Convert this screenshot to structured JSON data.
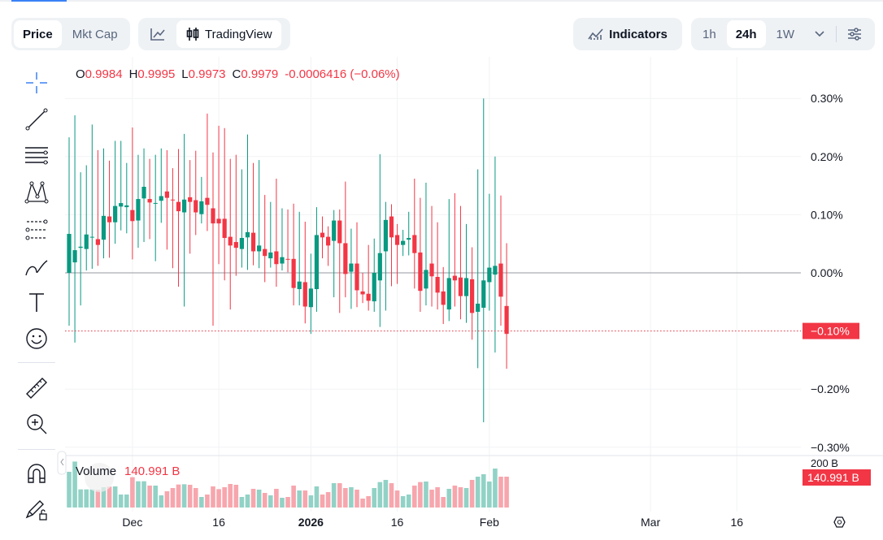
{
  "toolbar": {
    "price": "Price",
    "mkt_cap": "Mkt Cap",
    "tradingview": "TradingView",
    "indicators": "Indicators",
    "intervals": [
      "1h",
      "24h",
      "1W"
    ],
    "active_interval": "24h"
  },
  "legend": {
    "o_label": "O",
    "o": "0.9984",
    "h_label": "H",
    "h": "0.9995",
    "l_label": "L",
    "l": "0.9973",
    "c_label": "C",
    "c": "0.9979",
    "change": "-0.0006416 (−0.06%)"
  },
  "volume": {
    "label": "Volume",
    "value": "140.991 B",
    "axis_label": "200 B",
    "value_badge": "140.991 B"
  },
  "price_axis": {
    "ticks": [
      "0.30%",
      "0.20%",
      "0.10%",
      "0.00%",
      "−0.10%",
      "−0.20%",
      "−0.30%"
    ],
    "current_badge": "−0.10%"
  },
  "time_axis": {
    "ticks": [
      "Dec",
      "16",
      "2026",
      "16",
      "Feb",
      "Mar",
      "16"
    ]
  },
  "colors": {
    "up": "#089981",
    "down": "#f23645",
    "up_vol": "#92d2c6",
    "down_vol": "#f7a6ad",
    "accent": "#3b82f6"
  },
  "left_tools": [
    "crosshair-icon",
    "trend-line-icon",
    "horizontal-lines-icon",
    "pattern-icon",
    "projection-icon",
    "brush-icon",
    "text-icon",
    "emoji-icon",
    "ruler-icon",
    "zoom-in-icon",
    "magnet-icon",
    "lock-drawing-icon"
  ],
  "chart_data": {
    "type": "candlestick",
    "ylabel": "",
    "ylim": [
      -0.3,
      0.3
    ],
    "y_unit": "%",
    "grid": true,
    "current_value": -0.1,
    "columns": [
      "date",
      "open",
      "high",
      "low",
      "close",
      "volume_B"
    ],
    "candles": [
      [
        "2025-11-20",
        0.0,
        0.233,
        -0.091,
        0.067,
        163.3
      ],
      [
        "2025-11-21",
        0.018,
        0.271,
        -0.12,
        0.039,
        210.0
      ],
      [
        "2025-11-22",
        0.043,
        0.173,
        -0.056,
        0.045,
        82.9
      ],
      [
        "2025-11-23",
        0.041,
        0.185,
        0.004,
        0.066,
        82.9
      ],
      [
        "2025-11-24",
        0.061,
        0.255,
        0.007,
        0.062,
        82.9
      ],
      [
        "2025-11-25",
        0.058,
        0.211,
        0.012,
        0.048,
        80.4
      ],
      [
        "2025-11-26",
        0.057,
        0.214,
        0.025,
        0.098,
        92.8
      ],
      [
        "2025-11-27",
        0.097,
        0.193,
        0.026,
        0.087,
        95.2
      ],
      [
        "2025-11-28",
        0.087,
        0.227,
        0.05,
        0.115,
        96.5
      ],
      [
        "2025-11-29",
        0.114,
        0.227,
        0.073,
        0.12,
        59.4
      ],
      [
        "2025-11-30",
        0.113,
        0.189,
        0.068,
        0.116,
        59.4
      ],
      [
        "2025-12-01",
        0.108,
        0.25,
        0.023,
        0.089,
        138.5
      ],
      [
        "2025-12-02",
        0.09,
        0.203,
        0.043,
        0.127,
        120.0
      ],
      [
        "2025-12-03",
        0.128,
        0.214,
        0.053,
        0.148,
        120.0
      ],
      [
        "2025-12-04",
        0.127,
        0.196,
        0.058,
        0.121,
        100.2
      ],
      [
        "2025-12-05",
        0.12,
        0.203,
        0.02,
        0.1202,
        100.2
      ],
      [
        "2025-12-06",
        0.124,
        0.214,
        0.086,
        0.132,
        55.7
      ],
      [
        "2025-12-07",
        0.14,
        0.211,
        0.04,
        0.129,
        74.2
      ],
      [
        "2025-12-08",
        0.126,
        0.18,
        0.008,
        0.125,
        89.1
      ],
      [
        "2025-12-09",
        0.122,
        0.213,
        -0.024,
        0.106,
        105.1
      ],
      [
        "2025-12-10",
        0.104,
        0.239,
        -0.058,
        0.126,
        106.4
      ],
      [
        "2025-12-11",
        0.13,
        0.194,
        0.033,
        0.122,
        103.9
      ],
      [
        "2025-12-12",
        0.125,
        0.21,
        0.065,
        0.104,
        89.1
      ],
      [
        "2025-12-13",
        0.101,
        0.165,
        0.085,
        0.123,
        48.2
      ],
      [
        "2025-12-14",
        0.129,
        0.274,
        0.072,
        0.117,
        59.4
      ],
      [
        "2025-12-15",
        0.111,
        0.207,
        -0.091,
        0.085,
        96.5
      ],
      [
        "2025-12-16",
        0.093,
        0.253,
        0.015,
        0.085,
        84.1
      ],
      [
        "2025-12-17",
        0.093,
        0.249,
        -0.013,
        0.06,
        92.8
      ],
      [
        "2025-12-18",
        0.062,
        0.196,
        -0.063,
        0.047,
        107.6
      ],
      [
        "2025-12-19",
        0.053,
        0.203,
        -0.005,
        0.043,
        103.9
      ],
      [
        "2025-12-20",
        0.041,
        0.178,
        0.009,
        0.06,
        48.2
      ],
      [
        "2025-12-21",
        0.061,
        0.238,
        0.005,
        0.07,
        59.4
      ],
      [
        "2025-12-22",
        0.069,
        0.189,
        0.013,
        0.037,
        85.4
      ],
      [
        "2025-12-23",
        0.037,
        0.194,
        0.008,
        0.047,
        81.6
      ],
      [
        "2025-12-24",
        0.041,
        0.134,
        -0.016,
        0.029,
        66.8
      ],
      [
        "2025-12-25",
        0.025,
        0.122,
        0.009,
        0.035,
        55.7
      ],
      [
        "2025-12-26",
        0.037,
        0.162,
        -0.024,
        0.015,
        85.4
      ],
      [
        "2025-12-27",
        0.016,
        0.111,
        0.004,
        0.027,
        44.5
      ],
      [
        "2025-12-28",
        0.024,
        0.109,
        0.001,
        0.023,
        48.2
      ],
      [
        "2025-12-29",
        0.024,
        0.119,
        -0.056,
        -0.026,
        100.2
      ],
      [
        "2025-12-30",
        -0.028,
        0.105,
        -0.056,
        -0.015,
        77.9
      ],
      [
        "2025-12-31",
        -0.016,
        0.088,
        -0.087,
        -0.058,
        77.9
      ],
      [
        "2026-01-01",
        -0.059,
        0.033,
        -0.105,
        -0.027,
        55.7
      ],
      [
        "2026-01-02",
        -0.028,
        0.113,
        -0.067,
        0.065,
        96.5
      ],
      [
        "2026-01-03",
        0.069,
        0.097,
        0.025,
        0.061,
        59.4
      ],
      [
        "2026-01-04",
        0.062,
        0.08,
        0.012,
        0.047,
        70.5
      ],
      [
        "2026-01-05",
        0.055,
        0.108,
        -0.042,
        0.09,
        111.3
      ],
      [
        "2026-01-06",
        0.09,
        0.109,
        -0.069,
        0.051,
        111.3
      ],
      [
        "2026-01-07",
        0.051,
        0.157,
        -0.042,
        -0.002,
        89.1
      ],
      [
        "2026-01-08",
        0.002,
        0.076,
        -0.062,
        0.016,
        92.8
      ],
      [
        "2026-01-09",
        0.016,
        0.087,
        -0.059,
        -0.03,
        81.6
      ],
      [
        "2026-01-10",
        -0.032,
        0.0,
        -0.052,
        -0.037,
        40.8
      ],
      [
        "2026-01-11",
        -0.036,
        0.048,
        -0.065,
        -0.048,
        52.0
      ],
      [
        "2026-01-12",
        -0.049,
        0.059,
        -0.067,
        0.0,
        89.1
      ],
      [
        "2026-01-13",
        -0.013,
        0.204,
        -0.093,
        0.034,
        116.3
      ],
      [
        "2026-01-14",
        0.037,
        0.122,
        -0.065,
        0.091,
        126.2
      ],
      [
        "2026-01-15",
        0.097,
        0.118,
        -0.023,
        0.061,
        111.3
      ],
      [
        "2026-01-16",
        0.065,
        0.084,
        -0.019,
        0.048,
        77.9
      ],
      [
        "2026-01-17",
        0.048,
        0.074,
        0.029,
        0.055,
        52.0
      ],
      [
        "2026-01-18",
        0.057,
        0.105,
        0.03,
        0.06,
        59.4
      ],
      [
        "2026-01-19",
        0.065,
        0.162,
        -0.027,
        0.034,
        100.2
      ],
      [
        "2026-01-20",
        0.035,
        0.129,
        -0.067,
        -0.031,
        116.3
      ],
      [
        "2026-01-21",
        -0.027,
        0.155,
        -0.056,
        0.005,
        118.8
      ],
      [
        "2026-01-22",
        0.016,
        0.115,
        -0.058,
        -0.006,
        81.6
      ],
      [
        "2026-01-23",
        -0.007,
        0.087,
        -0.063,
        -0.034,
        92.8
      ],
      [
        "2026-01-24",
        -0.032,
        0.01,
        -0.088,
        -0.055,
        48.2
      ],
      [
        "2026-01-25",
        -0.063,
        0.127,
        -0.083,
        -0.009,
        85.4
      ],
      [
        "2026-01-26",
        -0.005,
        0.137,
        -0.058,
        -0.013,
        100.2
      ],
      [
        "2026-01-27",
        -0.008,
        0.115,
        -0.08,
        -0.04,
        92.8
      ],
      [
        "2026-01-28",
        -0.04,
        0.084,
        -0.086,
        -0.009,
        89.1
      ],
      [
        "2026-01-29",
        -0.011,
        0.044,
        -0.115,
        -0.069,
        126.2
      ],
      [
        "2026-01-30",
        -0.067,
        0.178,
        -0.164,
        -0.053,
        141.0
      ],
      [
        "2026-01-31",
        -0.06,
        0.3,
        -0.257,
        -0.013,
        152.2
      ],
      [
        "2026-02-01",
        -0.016,
        0.136,
        -0.065,
        0.009,
        118.8
      ],
      [
        "2026-02-02",
        -0.003,
        0.2,
        -0.137,
        0.012,
        178.1
      ],
      [
        "2026-02-03",
        0.016,
        0.133,
        -0.091,
        -0.041,
        141.0
      ],
      [
        "2026-02-04",
        -0.057,
        0.051,
        -0.165,
        -0.105,
        140.991
      ]
    ]
  }
}
